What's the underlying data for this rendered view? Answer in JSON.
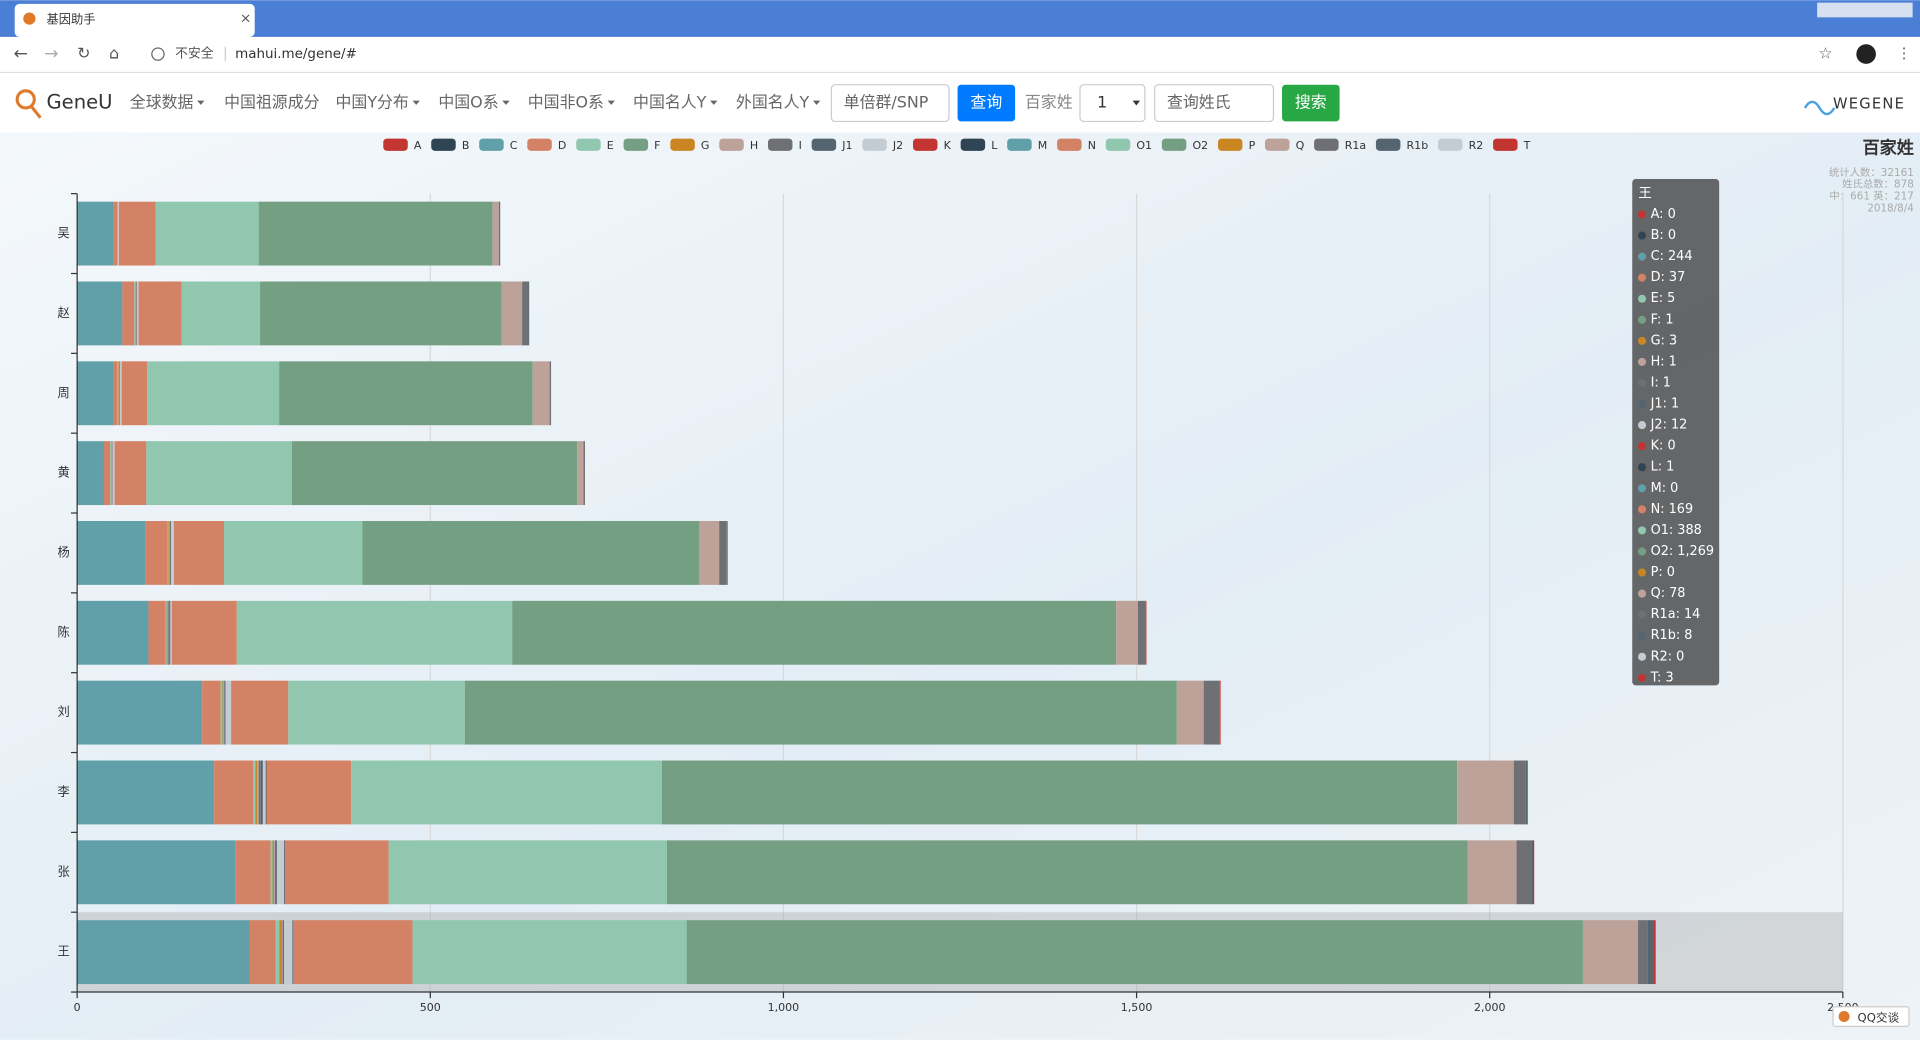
{
  "browser": {
    "tab_title": "基因助手",
    "security": "不安全",
    "url": "mahui.me/gene/#"
  },
  "nav": {
    "brand": "GeneU",
    "menu": [
      "全球数据",
      "中国祖源成分",
      "中国Y分布",
      "中国O系",
      "中国非O系",
      "中国名人Y",
      "外国名人Y"
    ],
    "snp_placeholder": "单倍群/SNP",
    "query_button": "查询",
    "surname_label": "百家姓",
    "select_value": "1",
    "surname_placeholder": "查询姓氏",
    "search_button": "搜索",
    "partner": "WEGENE"
  },
  "chart_data": {
    "type": "bar",
    "orientation": "horizontal",
    "stacked": true,
    "title": "百家姓",
    "subtitle": [
      "统计人数：32161",
      "姓氏总数：878",
      "中：661 英：217",
      "2018/8/4"
    ],
    "categories": [
      "吴",
      "赵",
      "周",
      "黄",
      "杨",
      "陈",
      "刘",
      "李",
      "张",
      "王"
    ],
    "series": [
      {
        "name": "A",
        "color": "#c23531",
        "values": [
          0,
          0,
          0,
          0,
          0,
          0,
          0,
          0,
          0,
          0
        ]
      },
      {
        "name": "B",
        "color": "#2f4554",
        "values": [
          0,
          0,
          0,
          0,
          0,
          0,
          0,
          0,
          0,
          0
        ]
      },
      {
        "name": "C",
        "color": "#61a0a8",
        "values": [
          52,
          64,
          52,
          38,
          97,
          101,
          177,
          194,
          224,
          244
        ]
      },
      {
        "name": "D",
        "color": "#d48265",
        "values": [
          5,
          17,
          5,
          9,
          31,
          24,
          26,
          55,
          50,
          37
        ]
      },
      {
        "name": "E",
        "color": "#91c7ae",
        "values": [
          1,
          1,
          1,
          1,
          1,
          1,
          2,
          3,
          2,
          5
        ]
      },
      {
        "name": "F",
        "color": "#749f83",
        "values": [
          0,
          0,
          0,
          0,
          0,
          1,
          1,
          1,
          1,
          1
        ]
      },
      {
        "name": "G",
        "color": "#ca8622",
        "values": [
          0,
          1,
          1,
          0,
          1,
          1,
          1,
          2,
          2,
          3
        ]
      },
      {
        "name": "H",
        "color": "#bda29a",
        "values": [
          0,
          1,
          1,
          1,
          1,
          1,
          1,
          2,
          1,
          1
        ]
      },
      {
        "name": "I",
        "color": "#6e7074",
        "values": [
          0,
          1,
          1,
          1,
          1,
          2,
          1,
          3,
          2,
          1
        ]
      },
      {
        "name": "J1",
        "color": "#546570",
        "values": [
          0,
          0,
          0,
          0,
          1,
          1,
          1,
          3,
          1,
          1
        ]
      },
      {
        "name": "J2",
        "color": "#c4ccd3",
        "values": [
          1,
          2,
          2,
          3,
          4,
          2,
          8,
          4,
          10,
          12
        ]
      },
      {
        "name": "K",
        "color": "#c23531",
        "values": [
          0,
          0,
          0,
          0,
          0,
          0,
          0,
          0,
          0,
          0
        ]
      },
      {
        "name": "L",
        "color": "#2f4554",
        "values": [
          0,
          0,
          0,
          0,
          0,
          0,
          0,
          1,
          1,
          1
        ]
      },
      {
        "name": "M",
        "color": "#61a0a8",
        "values": [
          0,
          0,
          0,
          0,
          0,
          0,
          0,
          0,
          0,
          0
        ]
      },
      {
        "name": "N",
        "color": "#d48265",
        "values": [
          52,
          61,
          36,
          45,
          71,
          92,
          81,
          120,
          147,
          169
        ]
      },
      {
        "name": "O1",
        "color": "#91c7ae",
        "values": [
          146,
          111,
          187,
          206,
          196,
          390,
          250,
          440,
          394,
          388
        ]
      },
      {
        "name": "O2",
        "color": "#749f83",
        "values": [
          331,
          342,
          359,
          404,
          477,
          855,
          1008,
          1126,
          1134,
          1269
        ]
      },
      {
        "name": "P",
        "color": "#ca8622",
        "values": [
          0,
          0,
          0,
          0,
          0,
          0,
          0,
          0,
          0,
          0
        ]
      },
      {
        "name": "Q",
        "color": "#bda29a",
        "values": [
          9,
          29,
          24,
          9,
          28,
          31,
          38,
          80,
          69,
          78
        ]
      },
      {
        "name": "R1a",
        "color": "#6e7074",
        "values": [
          2,
          9,
          2,
          2,
          10,
          10,
          22,
          17,
          21,
          14
        ]
      },
      {
        "name": "R1b",
        "color": "#546570",
        "values": [
          0,
          1,
          0,
          0,
          1,
          1,
          1,
          2,
          3,
          8
        ]
      },
      {
        "name": "R2",
        "color": "#c4ccd3",
        "values": [
          0,
          0,
          0,
          0,
          0,
          0,
          0,
          0,
          0,
          0
        ]
      },
      {
        "name": "T",
        "color": "#c23531",
        "values": [
          0,
          0,
          0,
          0,
          1,
          1,
          1,
          1,
          1,
          3
        ]
      }
    ],
    "xlim": [
      0,
      2500
    ],
    "xticks": [
      0,
      500,
      {
        "value": 1000,
        "label": "1,000"
      },
      {
        "value": 1500,
        "label": "1,500"
      },
      {
        "value": 2000,
        "label": "2,000"
      },
      {
        "value": 2500,
        "label": "2,500"
      }
    ],
    "grid": true,
    "tooltip": {
      "title": "王",
      "items": [
        "A: 0",
        "B: 0",
        "C: 244",
        "D: 37",
        "E: 5",
        "F: 1",
        "G: 3",
        "H: 1",
        "I: 1",
        "J1: 1",
        "J2: 12",
        "K: 0",
        "L: 1",
        "M: 0",
        "N: 169",
        "O1: 388",
        "O2: 1,269",
        "P: 0",
        "Q: 78",
        "R1a: 14",
        "R1b: 8",
        "R2: 0",
        "T: 3"
      ]
    }
  },
  "footer": {
    "chat": "QQ交谈"
  }
}
